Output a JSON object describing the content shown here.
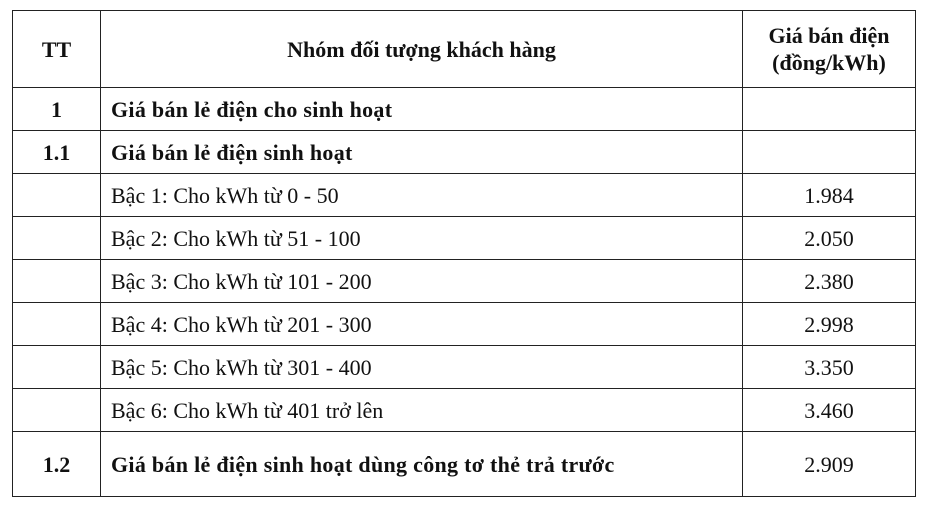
{
  "table": {
    "header": [
      "TT",
      "Nhóm đối tượng khách hàng",
      "Giá bán điện (đồng/kWh)"
    ],
    "rows": [
      [
        "1",
        "Giá bán lẻ điện cho sinh hoạt",
        ""
      ],
      [
        "1.1",
        "Giá bán lẻ điện sinh hoạt",
        ""
      ],
      [
        "",
        "Bậc 1: Cho kWh từ 0 - 50",
        "1.984"
      ],
      [
        "",
        "Bậc 2: Cho kWh từ 51 - 100",
        "2.050"
      ],
      [
        "",
        "Bậc 3: Cho kWh từ 101 - 200",
        "2.380"
      ],
      [
        "",
        "Bậc 4: Cho kWh từ 201 - 300",
        "2.998"
      ],
      [
        "",
        "Bậc 5: Cho kWh từ 301 - 400",
        "3.350"
      ],
      [
        "",
        "Bậc 6: Cho kWh từ 401 trở lên",
        "3.460"
      ],
      [
        "1.2",
        "Giá bán lẻ điện sinh hoạt dùng công tơ thẻ trả trước",
        "2.909"
      ]
    ],
    "bold_rows": [
      0,
      1,
      8
    ]
  }
}
